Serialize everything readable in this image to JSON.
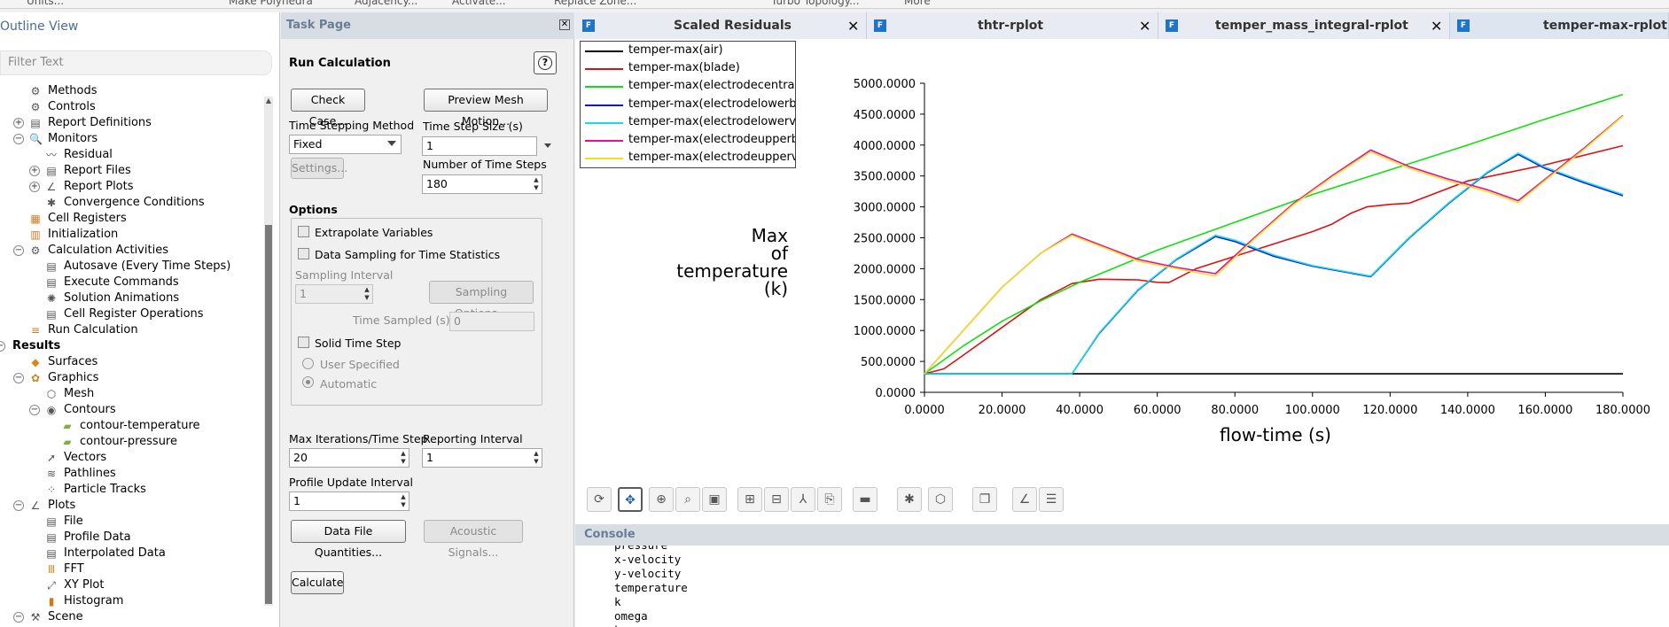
{
  "topbar": {
    "items": [
      "Units...",
      "Make Polyhedra",
      "Adjacency...",
      "Activate...",
      "Replace Zone...",
      "Turbo Topology...",
      "More"
    ]
  },
  "outline": {
    "title": "Outline View",
    "filter_placeholder": "Filter Text",
    "items": [
      {
        "label": "Methods",
        "icon": "methods-icon",
        "level": 2,
        "toggle": ""
      },
      {
        "label": "Controls",
        "icon": "controls-icon",
        "level": 2,
        "toggle": ""
      },
      {
        "label": "Report Definitions",
        "icon": "report-definitions-icon",
        "level": 2,
        "toggle": "+"
      },
      {
        "label": "Monitors",
        "icon": "monitors-icon",
        "level": 2,
        "toggle": "−"
      },
      {
        "label": "Residual",
        "icon": "residual-icon",
        "level": 3,
        "toggle": ""
      },
      {
        "label": "Report Files",
        "icon": "report-files-icon",
        "level": 3,
        "toggle": "+"
      },
      {
        "label": "Report Plots",
        "icon": "report-plots-icon",
        "level": 3,
        "toggle": "+"
      },
      {
        "label": "Convergence Conditions",
        "icon": "convergence-icon",
        "level": 3,
        "toggle": ""
      },
      {
        "label": "Cell Registers",
        "icon": "cell-registers-icon",
        "level": 2,
        "toggle": ""
      },
      {
        "label": "Initialization",
        "icon": "initialization-icon",
        "level": 2,
        "toggle": ""
      },
      {
        "label": "Calculation Activities",
        "icon": "calculation-activities-icon",
        "level": 2,
        "toggle": "−"
      },
      {
        "label": "Autosave (Every Time Steps)",
        "icon": "autosave-icon",
        "level": 3,
        "toggle": ""
      },
      {
        "label": "Execute Commands",
        "icon": "execute-commands-icon",
        "level": 3,
        "toggle": ""
      },
      {
        "label": "Solution Animations",
        "icon": "solution-animations-icon",
        "level": 3,
        "toggle": ""
      },
      {
        "label": "Cell Register Operations",
        "icon": "cell-register-operations-icon",
        "level": 3,
        "toggle": ""
      },
      {
        "label": "Run Calculation",
        "icon": "run-calculation-icon",
        "level": 2,
        "toggle": ""
      },
      {
        "label": "Results",
        "icon": "",
        "level": 0,
        "toggle": "−",
        "bold": true
      },
      {
        "label": "Surfaces",
        "icon": "surfaces-icon",
        "level": 2,
        "toggle": ""
      },
      {
        "label": "Graphics",
        "icon": "graphics-icon",
        "level": 2,
        "toggle": "−"
      },
      {
        "label": "Mesh",
        "icon": "mesh-icon",
        "level": 3,
        "toggle": ""
      },
      {
        "label": "Contours",
        "icon": "contours-icon",
        "level": 3,
        "toggle": "−"
      },
      {
        "label": "contour-temperature",
        "icon": "contour-icon",
        "level": 4,
        "toggle": ""
      },
      {
        "label": "contour-pressure",
        "icon": "contour-icon",
        "level": 4,
        "toggle": ""
      },
      {
        "label": "Vectors",
        "icon": "vectors-icon",
        "level": 3,
        "toggle": ""
      },
      {
        "label": "Pathlines",
        "icon": "pathlines-icon",
        "level": 3,
        "toggle": ""
      },
      {
        "label": "Particle Tracks",
        "icon": "particle-tracks-icon",
        "level": 3,
        "toggle": ""
      },
      {
        "label": "Plots",
        "icon": "plots-icon",
        "level": 2,
        "toggle": "−"
      },
      {
        "label": "File",
        "icon": "file-icon",
        "level": 3,
        "toggle": ""
      },
      {
        "label": "Profile Data",
        "icon": "profile-data-icon",
        "level": 3,
        "toggle": ""
      },
      {
        "label": "Interpolated Data",
        "icon": "interpolated-data-icon",
        "level": 3,
        "toggle": ""
      },
      {
        "label": "FFT",
        "icon": "fft-icon",
        "level": 3,
        "toggle": ""
      },
      {
        "label": "XY Plot",
        "icon": "xy-plot-icon",
        "level": 3,
        "toggle": ""
      },
      {
        "label": "Histogram",
        "icon": "histogram-icon",
        "level": 3,
        "toggle": ""
      },
      {
        "label": "Scene",
        "icon": "scene-icon",
        "level": 2,
        "toggle": "−"
      }
    ]
  },
  "task": {
    "header": "Task Page",
    "title": "Run Calculation",
    "check_case": "Check Case...",
    "preview_mesh": "Preview Mesh Motion...",
    "ts_method_label": "Time Stepping Method",
    "ts_method_value": "Fixed",
    "ts_size_label": "Time Step Size (s)",
    "ts_size_value": "1",
    "settings": "Settings...",
    "num_ts_label": "Number of Time Steps",
    "num_ts_value": "180",
    "options_label": "Options",
    "extrapolate": "Extrapolate Variables",
    "data_sampling": "Data Sampling for Time Statistics",
    "sampling_interval_label": "Sampling Interval",
    "sampling_interval_value": "1",
    "sampling_options": "Sampling Options...",
    "time_sampled_label": "Time Sampled (s)",
    "time_sampled_value": "0",
    "solid_time_step": "Solid Time Step",
    "user_specified": "User Specified",
    "automatic": "Automatic",
    "max_iter_label": "Max Iterations/Time Step",
    "max_iter_value": "20",
    "reporting_label": "Reporting Interval",
    "reporting_value": "1",
    "profile_label": "Profile Update Interval",
    "profile_value": "1",
    "data_file_quantities": "Data File Quantities...",
    "acoustic_signals": "Acoustic Signals...",
    "calculate": "Calculate"
  },
  "tabs": [
    {
      "label": "Scaled Residuals",
      "close": "✕"
    },
    {
      "label": "thtr-rplot",
      "close": "✕"
    },
    {
      "label": "temper_mass_integral-rplot",
      "close": "✕"
    },
    {
      "label": "temper-max-rplot",
      "close": ""
    }
  ],
  "chart_data": {
    "type": "line",
    "title": "",
    "xlabel": "flow-time (s)",
    "ylabel": "Max of temperature (k)",
    "ylabel_lines": [
      "Max",
      "of",
      "temperature",
      "(k)"
    ],
    "xlim": [
      0,
      180
    ],
    "ylim": [
      0,
      5000
    ],
    "x_ticks": [
      "0.0000",
      "20.0000",
      "40.0000",
      "60.0000",
      "80.0000",
      "100.0000",
      "120.0000",
      "140.0000",
      "160.0000",
      "180.0000"
    ],
    "y_ticks": [
      "0.0000",
      "500.0000",
      "1000.0000",
      "1500.0000",
      "2000.0000",
      "2500.0000",
      "3000.0000",
      "3500.0000",
      "4000.0000",
      "4500.0000",
      "5000.0000"
    ],
    "legend_position": "top-left",
    "series": [
      {
        "name": "temper-max(air)",
        "color": "#000000",
        "x": [
          0,
          180
        ],
        "y": [
          300,
          300
        ]
      },
      {
        "name": "temper-max(blade)",
        "color": "#e01010",
        "x": [
          0,
          5,
          10,
          20,
          30,
          38,
          45,
          55,
          60,
          63,
          70,
          80,
          90,
          100,
          105,
          110,
          114,
          120,
          125,
          140,
          160,
          180
        ],
        "y": [
          300,
          380,
          600,
          1050,
          1500,
          1760,
          1830,
          1820,
          1780,
          1775,
          2000,
          2200,
          2400,
          2600,
          2720,
          2900,
          3000,
          3040,
          3060,
          3420,
          3680,
          3990
        ]
      },
      {
        "name": "temper-max(electrodecentral)",
        "color": "#10e010",
        "x": [
          0,
          10,
          20,
          30,
          40,
          60,
          80,
          100,
          120,
          140,
          160,
          180
        ],
        "y": [
          300,
          750,
          1150,
          1480,
          1780,
          2300,
          2750,
          3200,
          3600,
          4000,
          4420,
          4820
        ]
      },
      {
        "name": "temper-max(electrodelowerbac",
        "color": "#1010e0",
        "x": [
          0,
          38,
          45,
          55,
          65,
          75,
          80,
          90,
          100,
          115,
          125,
          135,
          145,
          153,
          160,
          170,
          180
        ],
        "y": [
          300,
          300,
          950,
          1650,
          2150,
          2520,
          2440,
          2200,
          2040,
          1870,
          2500,
          3050,
          3550,
          3850,
          3620,
          3390,
          3180
        ]
      },
      {
        "name": "temper-max(electrodelowervo",
        "color": "#10e0e0",
        "x": [
          0,
          38,
          45,
          55,
          65,
          75,
          80,
          90,
          100,
          115,
          125,
          135,
          145,
          153,
          160,
          170,
          180
        ],
        "y": [
          300,
          300,
          960,
          1660,
          2160,
          2540,
          2460,
          2220,
          2050,
          1880,
          2510,
          3060,
          3560,
          3870,
          3640,
          3410,
          3200
        ]
      },
      {
        "name": "temper-max(electrodeupperba",
        "color": "#e0109a",
        "x": [
          0,
          10,
          20,
          30,
          38,
          48,
          55,
          65,
          75,
          85,
          95,
          105,
          115,
          125,
          135,
          145,
          153,
          160,
          170,
          180
        ],
        "y": [
          300,
          1000,
          1700,
          2250,
          2560,
          2320,
          2150,
          2020,
          1920,
          2500,
          3050,
          3500,
          3920,
          3650,
          3450,
          3280,
          3100,
          3450,
          3950,
          4480
        ]
      },
      {
        "name": "temper-max(electrodeuppervo",
        "color": "#f2e020",
        "x": [
          0,
          10,
          20,
          30,
          38,
          48,
          55,
          65,
          75,
          85,
          95,
          105,
          115,
          125,
          135,
          145,
          153,
          160,
          170,
          180
        ],
        "y": [
          300,
          1000,
          1700,
          2250,
          2540,
          2300,
          2120,
          2000,
          1880,
          2480,
          3030,
          3480,
          3890,
          3620,
          3420,
          3250,
          3070,
          3430,
          3930,
          4470
        ]
      }
    ]
  },
  "toolbar": {
    "buttons": [
      "rotate-icon",
      "pan-icon",
      "zoom-icon",
      "zoom-box-icon",
      "fit-icon",
      "zoom-in-icon",
      "zoom-out-icon",
      "axes-icon",
      "copy-icon",
      "ruler-icon",
      "probe-icon",
      "view-cube-icon",
      "layers-icon",
      "plot-icon",
      "properties-icon"
    ]
  },
  "console": {
    "title": "Console",
    "lines": [
      "pressure",
      "x-velocity",
      "y-velocity",
      "temperature",
      "k",
      "omega",
      "k-omega"
    ]
  }
}
